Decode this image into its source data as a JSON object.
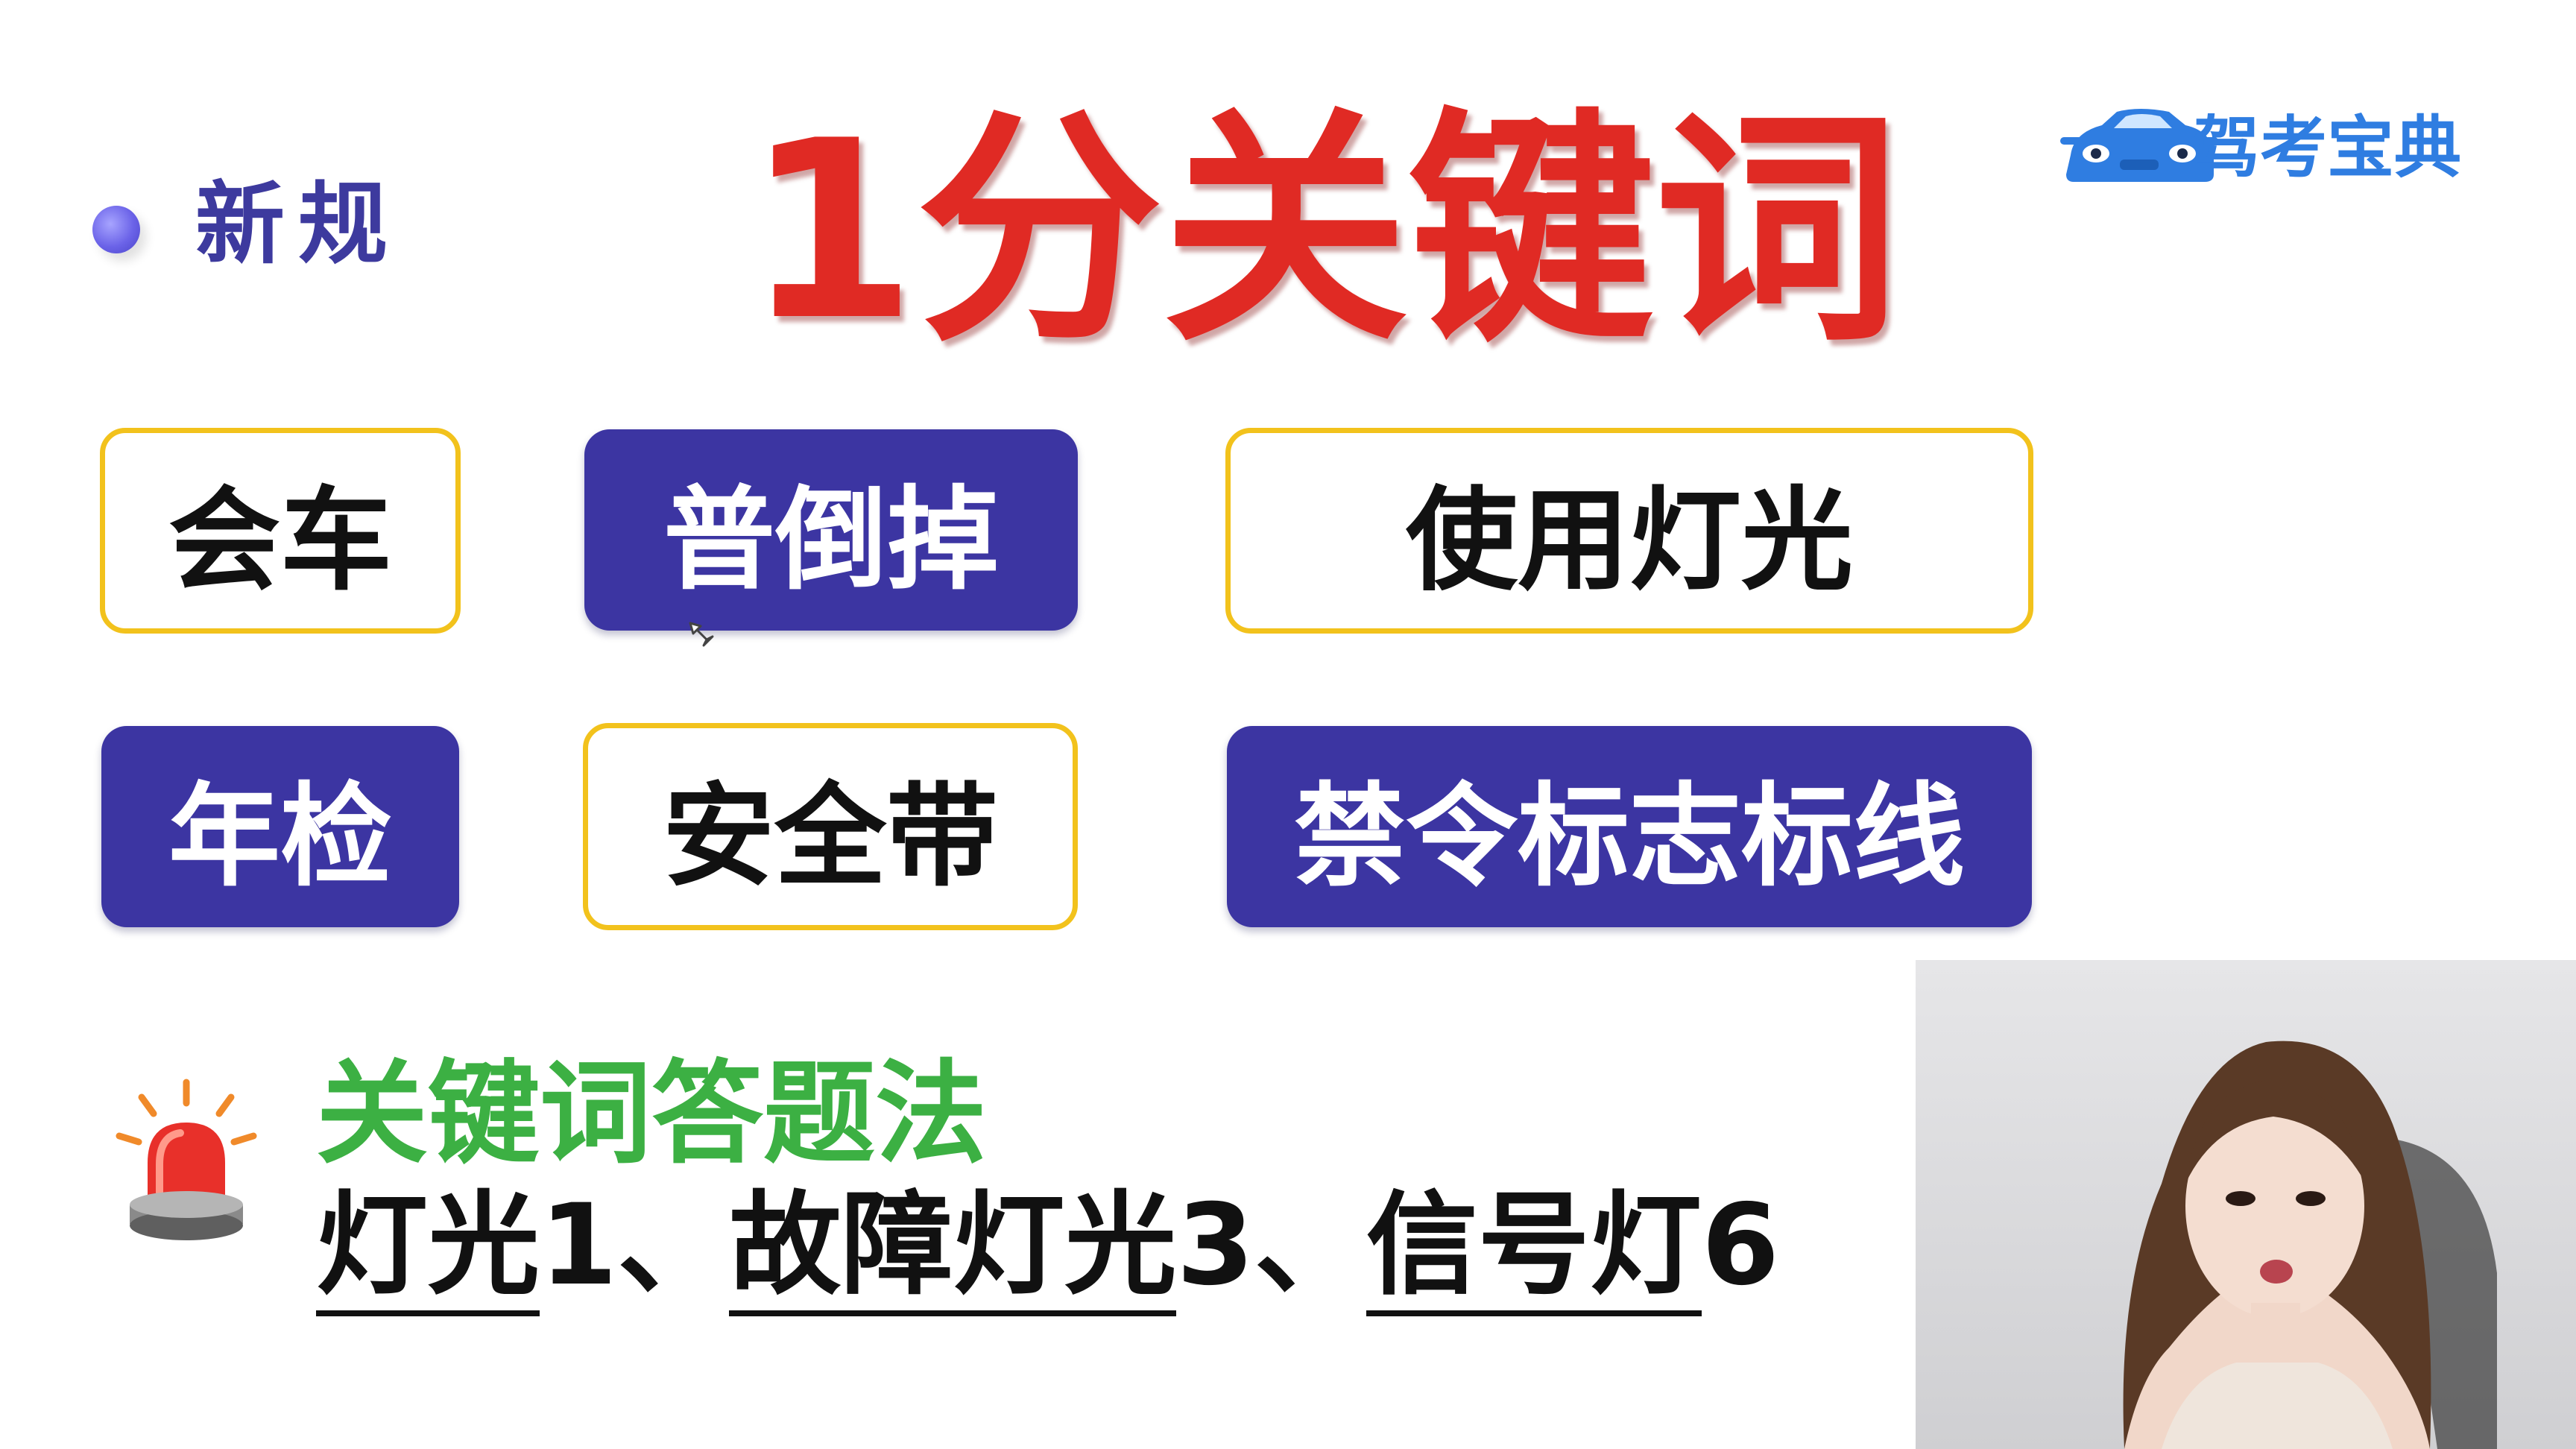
{
  "section_tag": "新规",
  "title": "1分关键词",
  "brand": {
    "name": "驾考宝典",
    "color": "#2f7de1",
    "icon": "car-icon"
  },
  "keywords": [
    {
      "label": "会车",
      "style": "outline"
    },
    {
      "label": "普倒掉",
      "style": "filled"
    },
    {
      "label": "使用灯光",
      "style": "outline"
    },
    {
      "label": "年检",
      "style": "filled"
    },
    {
      "label": "安全带",
      "style": "outline"
    },
    {
      "label": "禁令标志标线",
      "style": "filled"
    }
  ],
  "method": {
    "icon": "alarm-light-icon",
    "title": "关键词答题法",
    "items": [
      {
        "keyword": "灯光",
        "score": "1"
      },
      {
        "keyword": "故障灯光",
        "score": "3"
      },
      {
        "keyword": "信号灯",
        "score": "6"
      }
    ],
    "separator": "、"
  },
  "colors": {
    "title": "#e02a24",
    "accent_purple": "#3c35a2",
    "outline_yellow": "#f2c21c",
    "method_green": "#3cb043"
  }
}
